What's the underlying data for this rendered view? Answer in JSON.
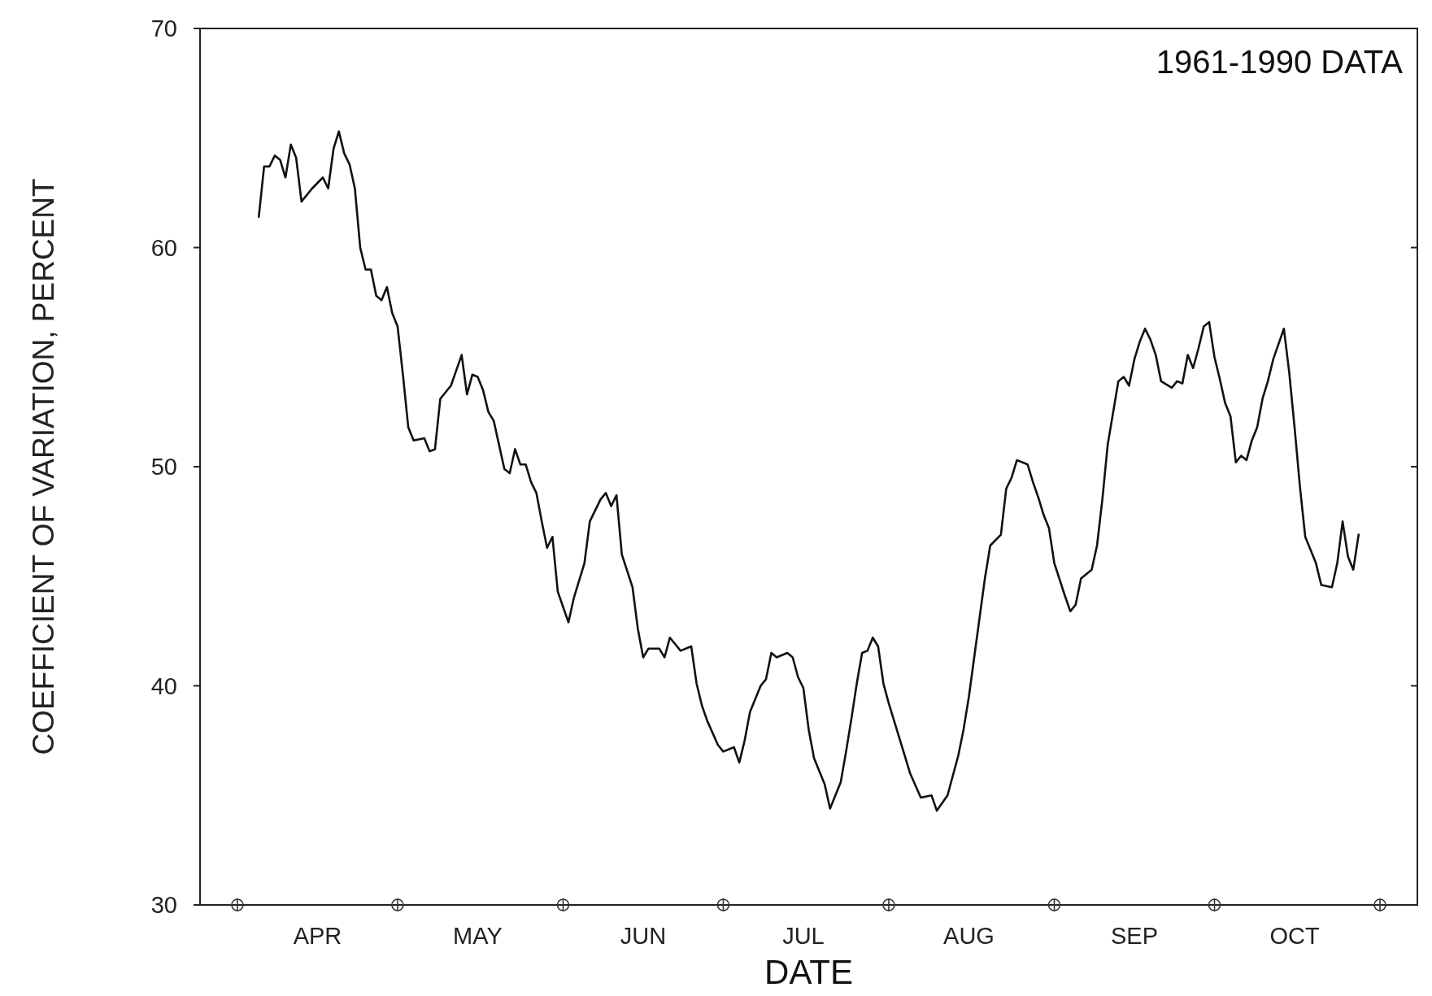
{
  "chart_data": {
    "type": "line",
    "xlabel": "DATE",
    "ylabel": "COEFFICIENT OF VARIATION, PERCENT",
    "annotations": [
      "1961-1990 DATA"
    ],
    "xlim": [
      "--03-25",
      "--11-08"
    ],
    "xticks": [
      {
        "value": "--04-01",
        "label": null
      },
      {
        "value": "--04-16",
        "label": "APR"
      },
      {
        "value": "--05-01",
        "label": null
      },
      {
        "value": "--05-16",
        "label": "MAY"
      },
      {
        "value": "--06-01",
        "label": null
      },
      {
        "value": "--06-16",
        "label": "JUN"
      },
      {
        "value": "--07-01",
        "label": null
      },
      {
        "value": "--07-16",
        "label": "JUL"
      },
      {
        "value": "--08-01",
        "label": null
      },
      {
        "value": "--08-16",
        "label": "AUG"
      },
      {
        "value": "--09-01",
        "label": null
      },
      {
        "value": "--09-16",
        "label": "SEP"
      },
      {
        "value": "--10-01",
        "label": null
      },
      {
        "value": "--10-16",
        "label": "OCT"
      },
      {
        "value": "--11-01",
        "label": null
      }
    ],
    "ylim": [
      30,
      70
    ],
    "yticks": [
      30,
      40,
      50,
      60,
      70
    ],
    "grid": false,
    "marker": "none",
    "line_style": "solid",
    "series": [
      {
        "color": "#111111",
        "x": [
          "--04-05",
          "--04-06",
          "--04-07",
          "--04-08",
          "--04-09",
          "--04-10",
          "--04-11",
          "--04-12",
          "--04-13",
          "--04-15",
          "--04-17",
          "--04-18",
          "--04-19",
          "--04-20",
          "--04-21",
          "--04-22",
          "--04-23",
          "--04-24",
          "--04-25",
          "--04-26",
          "--04-27",
          "--04-28",
          "--04-29",
          "--04-30",
          "--05-01",
          "--05-02",
          "--05-03",
          "--05-04",
          "--05-06",
          "--05-07",
          "--05-08",
          "--05-09",
          "--05-11",
          "--05-12",
          "--05-13",
          "--05-14",
          "--05-15",
          "--05-16",
          "--05-17",
          "--05-18",
          "--05-19",
          "--05-21",
          "--05-22",
          "--05-23",
          "--05-24",
          "--05-25",
          "--05-26",
          "--05-27",
          "--05-28",
          "--05-29",
          "--05-30",
          "--05-31",
          "--06-01",
          "--06-02",
          "--06-03",
          "--06-05",
          "--06-06",
          "--06-08",
          "--06-09",
          "--06-10",
          "--06-11",
          "--06-12",
          "--06-14",
          "--06-15",
          "--06-16",
          "--06-17",
          "--06-19",
          "--06-20",
          "--06-21",
          "--06-22",
          "--06-23",
          "--06-25",
          "--06-26",
          "--06-27",
          "--06-28",
          "--06-30",
          "--07-01",
          "--07-03",
          "--07-04",
          "--07-05",
          "--07-06",
          "--07-08",
          "--07-09",
          "--07-10",
          "--07-11",
          "--07-13",
          "--07-14",
          "--07-15",
          "--07-16",
          "--07-17",
          "--07-18",
          "--07-20",
          "--07-21",
          "--07-23",
          "--07-24",
          "--07-25",
          "--07-26",
          "--07-27",
          "--07-28",
          "--07-29",
          "--07-30",
          "--07-31",
          "--08-01",
          "--08-03",
          "--08-04",
          "--08-05",
          "--08-07",
          "--08-09",
          "--08-10",
          "--08-12",
          "--08-14",
          "--08-15",
          "--08-16",
          "--08-18",
          "--08-19",
          "--08-20",
          "--08-22",
          "--08-23",
          "--08-24",
          "--08-25",
          "--08-27",
          "--08-28",
          "--08-29",
          "--08-30",
          "--08-31",
          "--09-01",
          "--09-03",
          "--09-04",
          "--09-05",
          "--09-06",
          "--09-08",
          "--09-09",
          "--09-10",
          "--09-11",
          "--09-13",
          "--09-14",
          "--09-15",
          "--09-16",
          "--09-17",
          "--09-18",
          "--09-19",
          "--09-20",
          "--09-21",
          "--09-23",
          "--09-24",
          "--09-25",
          "--09-26",
          "--09-27",
          "--09-28",
          "--09-29",
          "--09-30",
          "--10-01",
          "--10-02",
          "--10-03",
          "--10-04",
          "--10-05",
          "--10-06",
          "--10-07",
          "--10-08",
          "--10-09",
          "--10-10",
          "--10-11",
          "--10-12",
          "--10-13",
          "--10-14",
          "--10-15",
          "--10-16",
          "--10-17",
          "--10-18",
          "--10-20",
          "--10-21",
          "--10-23",
          "--10-24",
          "--10-25",
          "--10-26",
          "--10-27",
          "--10-28"
        ],
        "values": [
          61.4,
          63.7,
          63.7,
          64.2,
          64.0,
          63.2,
          64.7,
          64.1,
          62.1,
          62.7,
          63.2,
          62.7,
          64.5,
          65.3,
          64.3,
          63.8,
          62.7,
          60.0,
          59.0,
          59.0,
          57.8,
          57.6,
          58.2,
          57.0,
          56.4,
          54.2,
          51.8,
          51.2,
          51.3,
          50.7,
          50.8,
          53.1,
          53.7,
          54.4,
          55.1,
          53.3,
          54.2,
          54.1,
          53.5,
          52.5,
          52.1,
          49.9,
          49.7,
          50.8,
          50.1,
          50.1,
          49.3,
          48.8,
          47.5,
          46.3,
          46.8,
          44.3,
          43.6,
          42.9,
          44.0,
          45.6,
          47.5,
          48.5,
          48.8,
          48.2,
          48.7,
          46.0,
          44.5,
          42.6,
          41.3,
          41.7,
          41.7,
          41.3,
          42.2,
          41.9,
          41.6,
          41.8,
          40.1,
          39.1,
          38.4,
          37.3,
          37.0,
          37.2,
          36.5,
          37.5,
          38.8,
          40.0,
          40.3,
          41.5,
          41.3,
          41.5,
          41.3,
          40.4,
          39.9,
          38.0,
          36.7,
          35.5,
          34.4,
          35.6,
          37.0,
          38.5,
          40.1,
          41.5,
          41.6,
          42.2,
          41.8,
          40.1,
          39.2,
          37.6,
          36.8,
          36.0,
          34.9,
          35.0,
          34.3,
          35.0,
          36.8,
          38.0,
          39.5,
          43.1,
          44.9,
          46.4,
          46.9,
          49.0,
          49.5,
          50.3,
          50.1,
          49.3,
          48.6,
          47.8,
          47.2,
          45.6,
          44.1,
          43.4,
          43.7,
          44.9,
          45.3,
          46.4,
          48.5,
          51.0,
          53.9,
          54.1,
          53.7,
          54.9,
          55.7,
          56.3,
          55.8,
          55.1,
          53.9,
          53.6,
          53.9,
          53.8,
          55.1,
          54.5,
          55.4,
          56.4,
          56.6,
          55.0,
          54.0,
          52.9,
          52.3,
          50.2,
          50.5,
          50.3,
          51.2,
          51.8,
          53.1,
          53.9,
          54.9,
          55.6,
          56.3,
          54.3,
          51.8,
          49.1,
          46.8,
          45.6,
          44.6,
          44.5,
          45.6,
          47.5,
          45.9,
          45.3,
          46.9
        ]
      }
    ]
  }
}
